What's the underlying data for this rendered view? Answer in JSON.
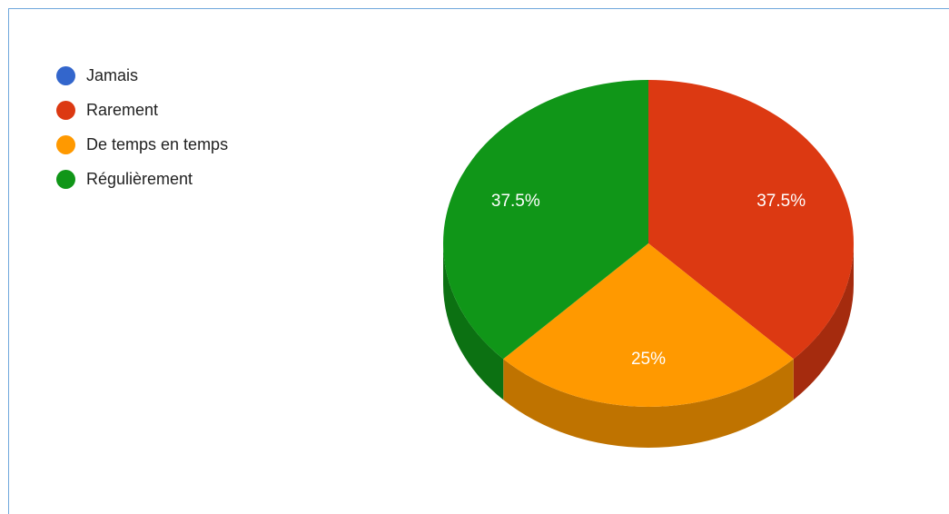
{
  "chart_data": {
    "type": "pie",
    "three_d": true,
    "legend_position": "left",
    "slices": [
      {
        "label": "Jamais",
        "value": 0,
        "percent_label": "",
        "color": "#3366cc",
        "side_color": "#264d99"
      },
      {
        "label": "Rarement",
        "value": 37.5,
        "percent_label": "37.5%",
        "color": "#dc3912",
        "side_color": "#a52b0e"
      },
      {
        "label": "De temps en temps",
        "value": 25,
        "percent_label": "25%",
        "color": "#ff9900",
        "side_color": "#bf7300"
      },
      {
        "label": "Régulièrement",
        "value": 37.5,
        "percent_label": "37.5%",
        "color": "#109618",
        "side_color": "#0c7112"
      }
    ]
  }
}
